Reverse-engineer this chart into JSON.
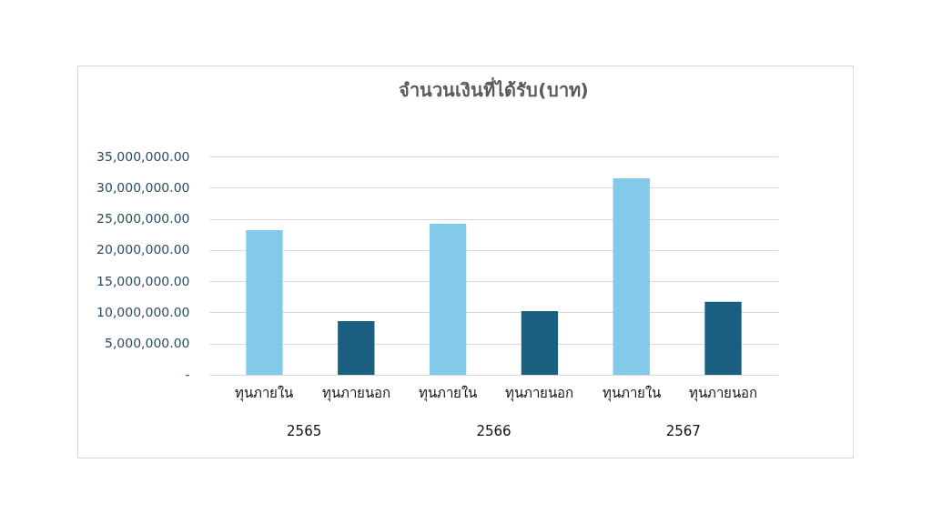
{
  "chart_data": {
    "type": "bar",
    "title": "จำนวนเงินที่ได้รับ(บาท)",
    "categories": [
      "2565",
      "2566",
      "2567"
    ],
    "series": [
      {
        "name": "ทุนภายใน",
        "color": "#82c9ea",
        "values": [
          23200000,
          24200000,
          31500000
        ]
      },
      {
        "name": "ทุนภายนอก",
        "color": "#1a5f80",
        "values": [
          8600000,
          10200000,
          11700000
        ]
      }
    ],
    "ylim": [
      0,
      35000000
    ],
    "yticks": [
      {
        "value": 0,
        "label": "-"
      },
      {
        "value": 5000000,
        "label": "5,000,000.00"
      },
      {
        "value": 10000000,
        "label": "10,000,000.00"
      },
      {
        "value": 15000000,
        "label": "15,000,000.00"
      },
      {
        "value": 20000000,
        "label": "20,000,000.00"
      },
      {
        "value": 25000000,
        "label": "25,000,000.00"
      },
      {
        "value": 30000000,
        "label": "30,000,000.00"
      },
      {
        "value": 35000000,
        "label": "35,000,000.00"
      }
    ],
    "grid": "y",
    "legend": false
  }
}
